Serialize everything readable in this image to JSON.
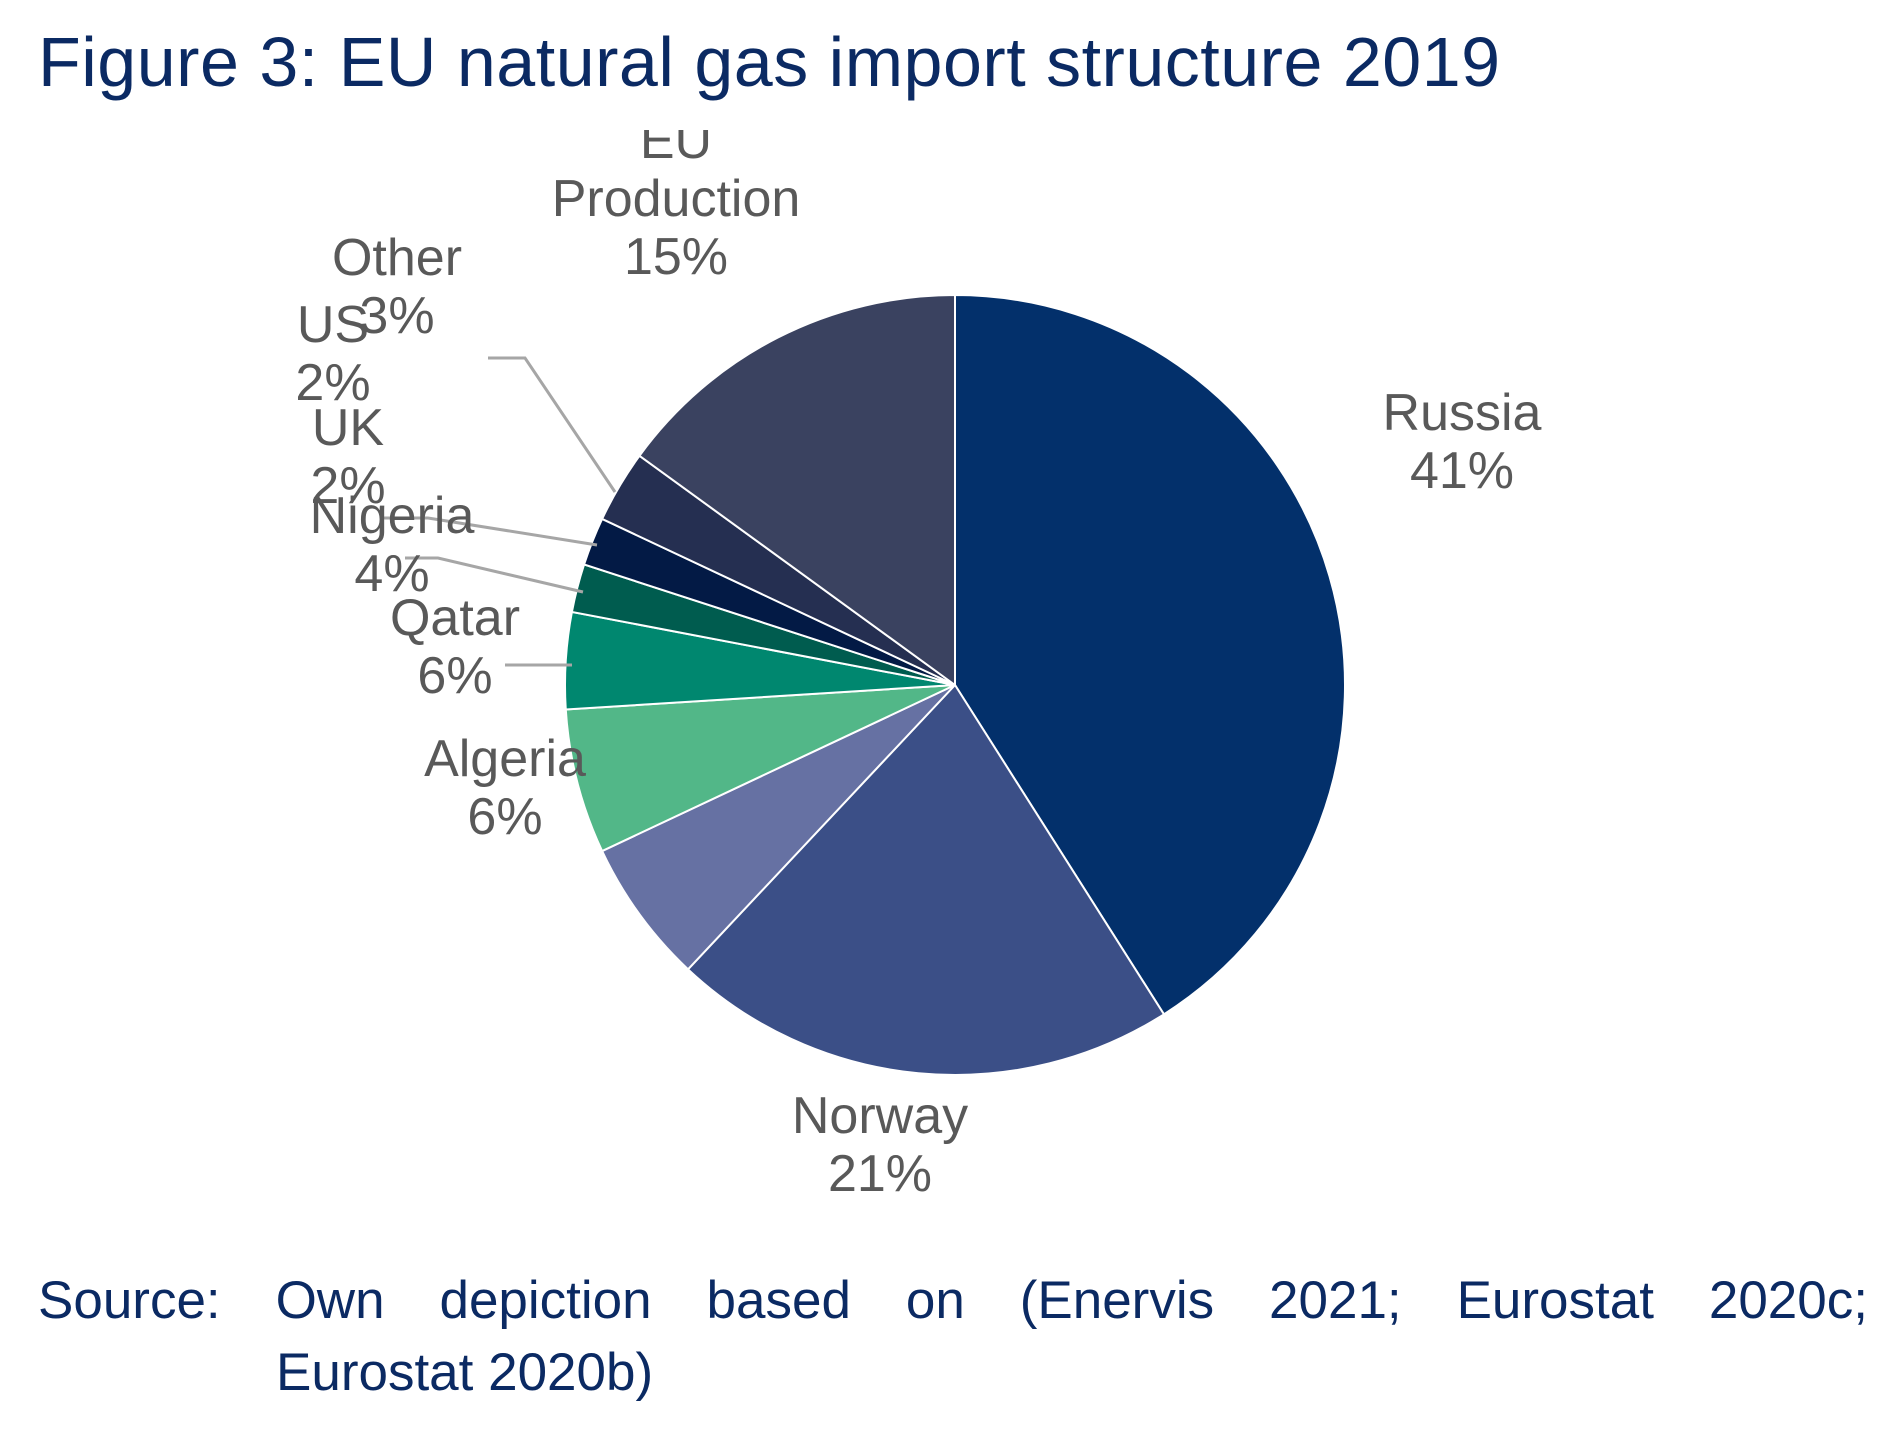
{
  "title": "Figure 3: EU natural gas import structure 2019",
  "source": {
    "line1": "Source: Own depiction based on (Enervis 2021; Eurostat 2020c;",
    "line2": "Eurostat 2020b)"
  },
  "chart_data": {
    "type": "pie",
    "title": "Figure 3: EU natural gas import structure 2019",
    "start_angle_deg": 0,
    "direction": "clockwise",
    "legend": "none",
    "slices": [
      {
        "label": "Russia",
        "label_lines": [
          "Russia"
        ],
        "value": 41,
        "value_label": "41%",
        "color": "#03306b",
        "leader": false
      },
      {
        "label": "Norway",
        "label_lines": [
          "Norway"
        ],
        "value": 21,
        "value_label": "21%",
        "color": "#3b4f87",
        "leader": false
      },
      {
        "label": "Algeria",
        "label_lines": [
          "Algeria"
        ],
        "value": 6,
        "value_label": "6%",
        "color": "#6671a3",
        "leader": false
      },
      {
        "label": "Qatar",
        "label_lines": [
          "Qatar"
        ],
        "value": 6,
        "value_label": "6%",
        "color": "#52b788",
        "leader": false
      },
      {
        "label": "Nigeria",
        "label_lines": [
          "Nigeria"
        ],
        "value": 4,
        "value_label": "4%",
        "color": "#00876f",
        "leader": true
      },
      {
        "label": "UK",
        "label_lines": [
          "UK"
        ],
        "value": 2,
        "value_label": "2%",
        "color": "#005c4f",
        "leader": true
      },
      {
        "label": "US",
        "label_lines": [
          "US"
        ],
        "value": 2,
        "value_label": "2%",
        "color": "#031a45",
        "leader": true
      },
      {
        "label": "Other",
        "label_lines": [
          "Other"
        ],
        "value": 3,
        "value_label": "3%",
        "color": "#252f51",
        "leader": true
      },
      {
        "label": "EU Production",
        "label_lines": [
          "EU",
          "Production"
        ],
        "value": 15,
        "value_label": "15%",
        "color": "#3a4260",
        "leader": false
      }
    ]
  }
}
